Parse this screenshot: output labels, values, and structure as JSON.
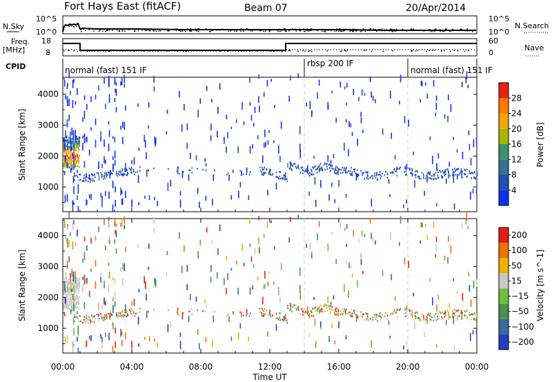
{
  "header": {
    "station": "Fort Hays East (fitACF)",
    "beam": "Beam 07",
    "date": "20/Apr/2014"
  },
  "panels": {
    "nsky_label": "N.Sky",
    "nsearch_label": "N.Search",
    "nsky_ticks": [
      "10^5",
      "10^0"
    ],
    "nsearch_ticks": [
      "10^5",
      "10^0"
    ],
    "freq_label": "Freq.",
    "freq_unit": "[MHz]",
    "freq_ticks": [
      "18",
      "8"
    ],
    "nave_label": "Nave",
    "nave_ticks": [
      "60",
      "0"
    ],
    "cpid_label": "CPID",
    "cpid_segments": [
      {
        "label": "normal (fast) 151 IF",
        "start_h": 0,
        "end_h": 14.0
      },
      {
        "label": "rbsp 200 IF",
        "start_h": 14.0,
        "end_h": 20.0
      },
      {
        "label": "normal (fast) 151 IF",
        "start_h": 20.0,
        "end_h": 24
      }
    ]
  },
  "chart_data": [
    {
      "type": "heatmap",
      "title": "",
      "ylabel": "Slant Range [km]",
      "y_ticks": [
        "1000",
        "2000",
        "3000",
        "4000"
      ],
      "ylim": [
        200,
        4550
      ],
      "xlim": [
        0,
        24
      ],
      "colorbar_label": "Power [dB]",
      "colorbar_ticks": [
        "4",
        "8",
        "12",
        "16",
        "20",
        "24",
        "28"
      ],
      "colorbar_range": [
        0,
        32
      ],
      "colors": [
        "#1030f0",
        "#2050b0",
        "#3a7090",
        "#3f9070",
        "#a8b400",
        "#f0a800",
        "#ff7800",
        "#e82010"
      ],
      "features": [
        {
          "label": "strong echoes",
          "x_range_h": [
            0,
            1
          ],
          "range_km": [
            1500,
            2600
          ],
          "value_db": 20
        },
        {
          "label": "scatter band",
          "x_range_h": [
            0.5,
            24
          ],
          "range_km_center": [
            1250,
            1700
          ],
          "value_db": 6
        }
      ]
    },
    {
      "type": "heatmap",
      "title": "",
      "ylabel": "Slant Range [km]",
      "y_ticks": [
        "1000",
        "2000",
        "3000",
        "4000"
      ],
      "ylim": [
        200,
        4550
      ],
      "xlim": [
        0,
        24
      ],
      "xlabel": "Time UT",
      "x_ticks": [
        "00:00",
        "04:00",
        "08:00",
        "12:00",
        "16:00",
        "20:00",
        "00:00"
      ],
      "colorbar_label": "Velocity [m s^-1]",
      "colorbar_ticks": [
        "200",
        "100",
        "50",
        "15",
        "−15",
        "−50",
        "−100",
        "−200"
      ],
      "colorbar_range": [
        -250,
        250
      ],
      "colors": [
        "#2040c0",
        "#3a6aa0",
        "#4a9050",
        "#70c040",
        "#c8c8c8",
        "#f0b000",
        "#f07000",
        "#e02010"
      ]
    }
  ]
}
